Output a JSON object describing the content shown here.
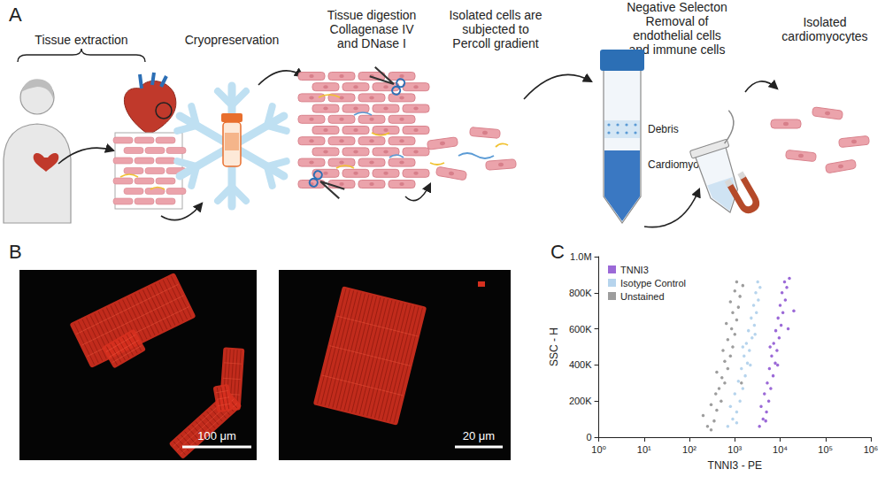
{
  "panel_labels": [
    "A",
    "B",
    "C"
  ],
  "workflow": {
    "steps": [
      {
        "label": [
          "Tissue extraction"
        ]
      },
      {
        "label": [
          "Cryopreservation"
        ]
      },
      {
        "label": [
          "Tissue digestion",
          "Collagenase IV",
          "and DNase I"
        ]
      },
      {
        "label": [
          "Isolated cells are",
          "subjected to",
          "Percoll gradient"
        ],
        "tube_layers": [
          "Debris",
          "Cardiomyocytes"
        ]
      },
      {
        "label": [
          "Negative Selecton",
          "Removal of",
          "endothelial cells",
          "and immune cells"
        ]
      },
      {
        "label": [
          "Isolated",
          "cardiomyocytes"
        ]
      }
    ]
  },
  "micrographs": [
    {
      "scale_bar": "100 μm"
    },
    {
      "scale_bar": "20 μm"
    }
  ],
  "chart_data": {
    "type": "scatter",
    "x_label": "TNNI3 - PE",
    "y_label": "SSC - H",
    "log": "x",
    "grid": false,
    "legend": "top-left",
    "marker": "circle",
    "xlim": [
      1,
      1000000
    ],
    "xticks": [
      {
        "value": 1,
        "label": "10⁰"
      },
      {
        "value": 10,
        "label": "10¹"
      },
      {
        "value": 100,
        "label": "10²"
      },
      {
        "value": 1000,
        "label": "10³"
      },
      {
        "value": 10000,
        "label": "10⁴"
      },
      {
        "value": 100000,
        "label": "10⁵"
      },
      {
        "value": 1000000,
        "label": "10⁶"
      }
    ],
    "ylim": [
      0,
      1000000
    ],
    "yticks": [
      0,
      {
        "value": 200000,
        "label": "200K"
      },
      {
        "value": 400000,
        "label": "400K"
      },
      {
        "value": 600000,
        "label": "600K"
      },
      {
        "value": 800000,
        "label": "800K"
      },
      {
        "value": 1000000,
        "label": "1.0M"
      }
    ],
    "series": [
      {
        "name": "TNNI3",
        "color": "#8a4fd0",
        "values": [
          [
            3500,
            60000
          ],
          [
            4200,
            100000
          ],
          [
            5000,
            140000
          ],
          [
            3800,
            170000
          ],
          [
            5600,
            200000
          ],
          [
            4500,
            240000
          ],
          [
            6200,
            270000
          ],
          [
            5200,
            300000
          ],
          [
            7000,
            340000
          ],
          [
            5800,
            380000
          ],
          [
            7800,
            410000
          ],
          [
            6500,
            450000
          ],
          [
            8500,
            480000
          ],
          [
            7200,
            520000
          ],
          [
            9500,
            550000
          ],
          [
            8000,
            590000
          ],
          [
            10500,
            620000
          ],
          [
            9000,
            660000
          ],
          [
            11500,
            690000
          ],
          [
            10000,
            730000
          ],
          [
            13000,
            760000
          ],
          [
            11000,
            800000
          ],
          [
            14000,
            830000
          ],
          [
            12500,
            860000
          ],
          [
            16000,
            880000
          ],
          [
            20000,
            700000
          ],
          [
            4800,
            90000
          ],
          [
            8800,
            400000
          ],
          [
            15000,
            600000
          ],
          [
            6000,
            500000
          ]
        ]
      },
      {
        "name": "Isotype Control",
        "color": "#a9cdea",
        "values": [
          [
            700,
            60000
          ],
          [
            900,
            100000
          ],
          [
            1100,
            140000
          ],
          [
            800,
            170000
          ],
          [
            1300,
            200000
          ],
          [
            1000,
            240000
          ],
          [
            1500,
            270000
          ],
          [
            1200,
            310000
          ],
          [
            1700,
            340000
          ],
          [
            1400,
            380000
          ],
          [
            1900,
            410000
          ],
          [
            1600,
            450000
          ],
          [
            2100,
            480000
          ],
          [
            1800,
            520000
          ],
          [
            2400,
            550000
          ],
          [
            2000,
            590000
          ],
          [
            2700,
            620000
          ],
          [
            2300,
            660000
          ],
          [
            3000,
            690000
          ],
          [
            2600,
            730000
          ],
          [
            3300,
            760000
          ],
          [
            2900,
            800000
          ],
          [
            3600,
            830000
          ],
          [
            3200,
            860000
          ],
          [
            1100,
            80000
          ],
          [
            2200,
            400000
          ],
          [
            1500,
            500000
          ],
          [
            2800,
            570000
          ]
        ]
      },
      {
        "name": "Unstained",
        "color": "#8c8c8c",
        "values": [
          [
            250,
            60000
          ],
          [
            350,
            90000
          ],
          [
            200,
            120000
          ],
          [
            400,
            150000
          ],
          [
            300,
            180000
          ],
          [
            500,
            200000
          ],
          [
            380,
            240000
          ],
          [
            450,
            270000
          ],
          [
            600,
            300000
          ],
          [
            520,
            330000
          ],
          [
            400,
            360000
          ],
          [
            700,
            380000
          ],
          [
            600,
            420000
          ],
          [
            800,
            450000
          ],
          [
            550,
            480000
          ],
          [
            900,
            500000
          ],
          [
            700,
            540000
          ],
          [
            1000,
            570000
          ],
          [
            850,
            600000
          ],
          [
            650,
            630000
          ],
          [
            1100,
            650000
          ],
          [
            900,
            690000
          ],
          [
            1200,
            720000
          ],
          [
            800,
            750000
          ],
          [
            1300,
            780000
          ],
          [
            1000,
            810000
          ],
          [
            1500,
            840000
          ],
          [
            1100,
            860000
          ],
          [
            1400,
            300000
          ],
          [
            300,
            40000
          ]
        ]
      }
    ]
  }
}
